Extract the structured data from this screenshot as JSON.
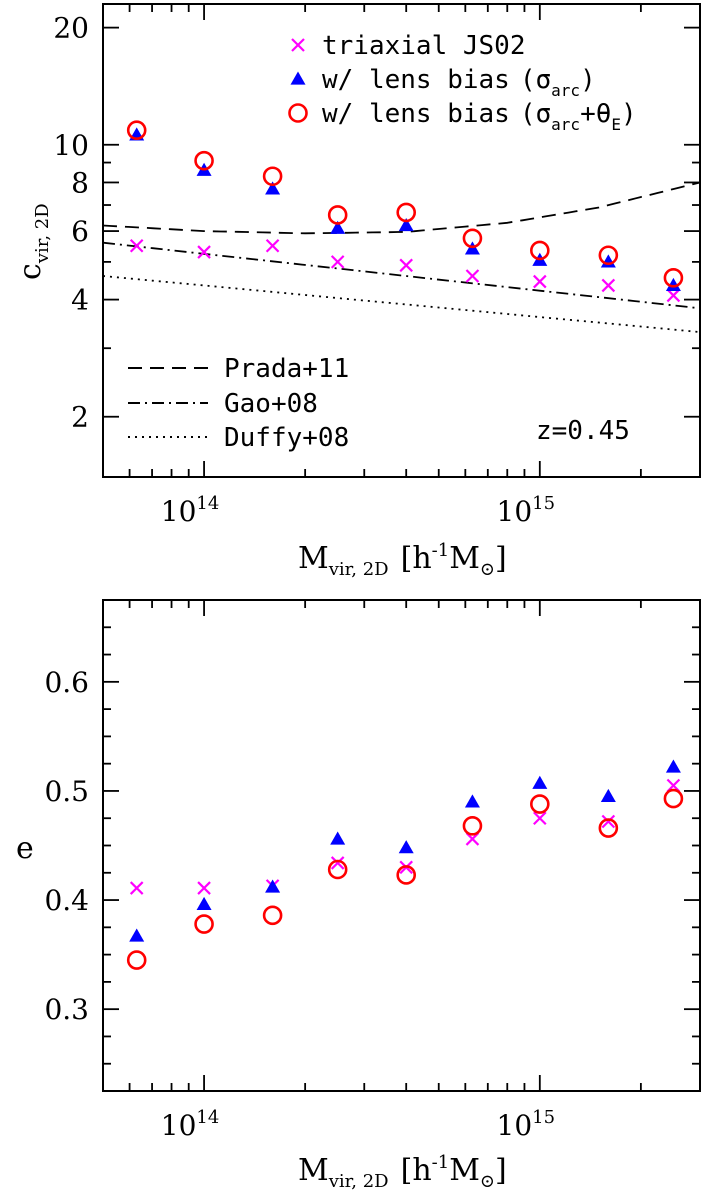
{
  "chart_data": [
    {
      "type": "scatter",
      "panel": "top",
      "xlabel": {
        "main": "M",
        "sub": "vir, 2D",
        "unit": "[h",
        "unit_sup": "-1",
        "unit_end": "M",
        "sun_symbol": "⊙",
        "close": "]"
      },
      "ylabel": {
        "main": "c",
        "sub": "vir, 2D"
      },
      "x_scale": "log",
      "y_scale": "log",
      "xlim": [
        50000000000000.0,
        3000000000000000.0
      ],
      "ylim": [
        1.4,
        23
      ],
      "y_ticks": [
        {
          "value": 2,
          "label": "2"
        },
        {
          "value": 4,
          "label": "4"
        },
        {
          "value": 6,
          "label": "6"
        },
        {
          "value": 8,
          "label": "8"
        },
        {
          "value": 10,
          "label": "10"
        },
        {
          "value": 20,
          "label": "20"
        }
      ],
      "x_ticks": [
        {
          "value": 100000000000000.0,
          "base": "10",
          "exp": "14"
        },
        {
          "value": 1000000000000000.0,
          "base": "10",
          "exp": "15"
        }
      ],
      "annotation": "z=0.45",
      "x": [
        63000000000000.0,
        100000000000000.0,
        160000000000000.0,
        250000000000000.0,
        400000000000000.0,
        630000000000000.0,
        1000000000000000.0,
        1600000000000000.0,
        2500000000000000.0
      ],
      "series": [
        {
          "name": "triaxial JS02",
          "marker": "x",
          "color": "#ff00ff",
          "values": [
            5.5,
            5.3,
            5.5,
            5.0,
            4.9,
            4.6,
            4.45,
            4.35,
            4.1
          ]
        },
        {
          "name": "w/ lens bias",
          "name_math": "(σ",
          "name_sub": "arc",
          "name_close": ")",
          "marker": "triangle",
          "color": "#0000ff",
          "values": [
            10.6,
            8.6,
            7.7,
            6.1,
            6.2,
            5.4,
            5.05,
            5.0,
            4.35
          ]
        },
        {
          "name": "w/ lens bias",
          "name_math": "(σ",
          "name_sub": "arc",
          "name_mid": "+θ",
          "name_sub2": "E",
          "name_close": ")",
          "marker": "circle",
          "color": "#ff0000",
          "values": [
            10.9,
            9.1,
            8.3,
            6.6,
            6.7,
            5.75,
            5.35,
            5.2,
            4.55
          ]
        }
      ],
      "lines": [
        {
          "name": "Prada+11",
          "style": "dashed",
          "points": [
            [
              50000000000000.0,
              6.2
            ],
            [
              100000000000000.0,
              6.0
            ],
            [
              200000000000000.0,
              5.92
            ],
            [
              400000000000000.0,
              5.97
            ],
            [
              800000000000000.0,
              6.3
            ],
            [
              1500000000000000.0,
              6.9
            ],
            [
              3000000000000000.0,
              8.0
            ]
          ]
        },
        {
          "name": "Gao+08",
          "style": "dashdot",
          "points": [
            [
              50000000000000.0,
              5.6
            ],
            [
              3000000000000000.0,
              3.8
            ]
          ]
        },
        {
          "name": "Duffy+08",
          "style": "dotted",
          "points": [
            [
              50000000000000.0,
              4.6
            ],
            [
              3000000000000000.0,
              3.3
            ]
          ]
        }
      ]
    },
    {
      "type": "scatter",
      "panel": "bottom",
      "xlabel": {
        "main": "M",
        "sub": "vir, 2D",
        "unit": "[h",
        "unit_sup": "-1",
        "unit_end": "M",
        "sun_symbol": "⊙",
        "close": "]"
      },
      "ylabel": {
        "main": "e"
      },
      "x_scale": "log",
      "y_scale": "linear",
      "xlim": [
        50000000000000.0,
        3000000000000000.0
      ],
      "ylim": [
        0.225,
        0.675
      ],
      "y_ticks": [
        {
          "value": 0.3,
          "label": "0.3"
        },
        {
          "value": 0.4,
          "label": "0.4"
        },
        {
          "value": 0.5,
          "label": "0.5"
        },
        {
          "value": 0.6,
          "label": "0.6"
        }
      ],
      "x_ticks": [
        {
          "value": 100000000000000.0,
          "base": "10",
          "exp": "14"
        },
        {
          "value": 1000000000000000.0,
          "base": "10",
          "exp": "15"
        }
      ],
      "x": [
        63000000000000.0,
        100000000000000.0,
        160000000000000.0,
        250000000000000.0,
        400000000000000.0,
        630000000000000.0,
        1000000000000000.0,
        1600000000000000.0,
        2500000000000000.0
      ],
      "series": [
        {
          "name": "triaxial JS02",
          "marker": "x",
          "color": "#ff00ff",
          "values": [
            0.411,
            0.411,
            0.413,
            0.434,
            0.43,
            0.456,
            0.475,
            0.472,
            0.505
          ]
        },
        {
          "name": "w/ lens bias (σarc)",
          "marker": "triangle",
          "color": "#0000ff",
          "values": [
            0.367,
            0.396,
            0.412,
            0.456,
            0.448,
            0.49,
            0.507,
            0.495,
            0.522
          ]
        },
        {
          "name": "w/ lens bias (σarc+θE)",
          "marker": "circle",
          "color": "#ff0000",
          "values": [
            0.345,
            0.378,
            0.386,
            0.428,
            0.423,
            0.468,
            0.488,
            0.466,
            0.493
          ]
        }
      ]
    }
  ]
}
